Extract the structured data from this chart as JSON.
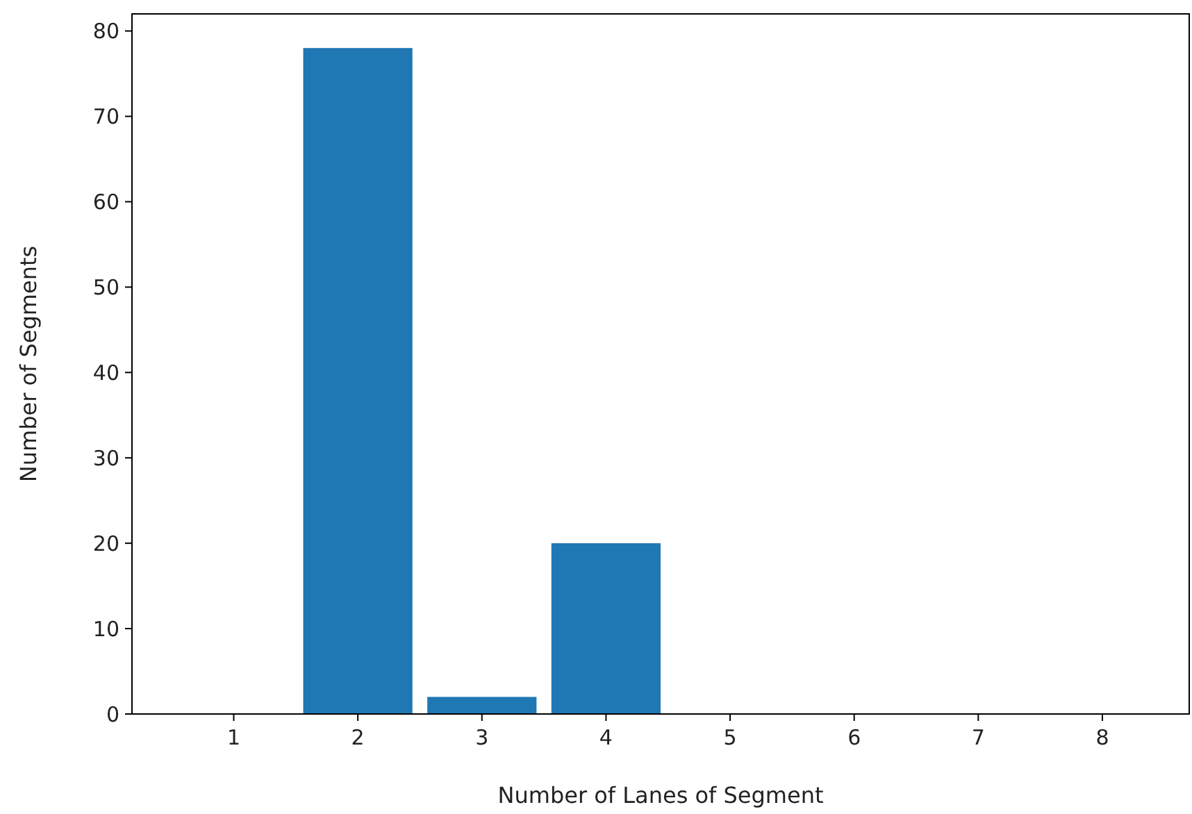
{
  "chart_data": {
    "type": "bar",
    "xlabel": "Number of Lanes of Segment",
    "ylabel": "Number of Segments",
    "x": [
      2,
      3,
      4
    ],
    "values": [
      78,
      2,
      20
    ],
    "color": "#1f77b4",
    "xlim": [
      0.18,
      8.7
    ],
    "xticks": [
      1,
      2,
      3,
      4,
      5,
      6,
      7,
      8
    ],
    "ylim": [
      0,
      82
    ],
    "yticks": [
      0,
      10,
      20,
      30,
      40,
      50,
      60,
      70,
      80
    ],
    "grid": false
  }
}
